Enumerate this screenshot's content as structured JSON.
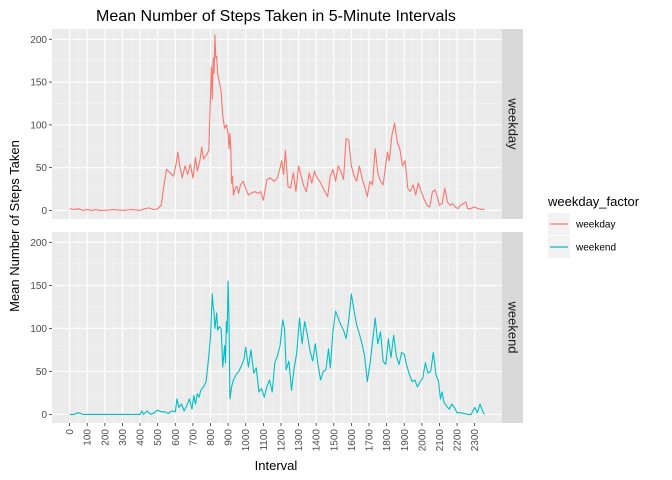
{
  "chart_data": {
    "type": "line",
    "title": "Mean Number of Steps Taken in 5-Minute Intervals",
    "xlabel": "Interval",
    "ylabel": "Mean Number of Steps Taken",
    "xlim": [
      -100,
      2455
    ],
    "ylim": [
      -10,
      212
    ],
    "x_ticks": [
      0,
      100,
      200,
      300,
      400,
      500,
      600,
      700,
      800,
      900,
      1000,
      1100,
      1200,
      1300,
      1400,
      1500,
      1600,
      1700,
      1800,
      1900,
      2000,
      2100,
      2200,
      2300
    ],
    "y_ticks": [
      0,
      50,
      100,
      150,
      200
    ],
    "grid": true,
    "legend": {
      "title": "weekday_factor",
      "position": "right"
    },
    "facets": [
      "weekday",
      "weekend"
    ],
    "series": [
      {
        "name": "weekday",
        "color": "#F8766D",
        "points": [
          [
            0,
            2
          ],
          [
            25,
            1
          ],
          [
            50,
            2
          ],
          [
            75,
            0
          ],
          [
            100,
            1
          ],
          [
            125,
            0
          ],
          [
            150,
            1
          ],
          [
            175,
            0
          ],
          [
            200,
            0
          ],
          [
            250,
            1
          ],
          [
            300,
            0
          ],
          [
            350,
            1
          ],
          [
            400,
            0
          ],
          [
            430,
            2
          ],
          [
            450,
            3
          ],
          [
            480,
            1
          ],
          [
            500,
            2
          ],
          [
            520,
            6
          ],
          [
            535,
            28
          ],
          [
            550,
            48
          ],
          [
            570,
            44
          ],
          [
            590,
            40
          ],
          [
            605,
            55
          ],
          [
            615,
            68
          ],
          [
            625,
            52
          ],
          [
            640,
            38
          ],
          [
            655,
            52
          ],
          [
            670,
            42
          ],
          [
            685,
            54
          ],
          [
            700,
            38
          ],
          [
            715,
            62
          ],
          [
            725,
            46
          ],
          [
            740,
            58
          ],
          [
            750,
            74
          ],
          [
            760,
            60
          ],
          [
            775,
            64
          ],
          [
            790,
            70
          ],
          [
            805,
            168
          ],
          [
            810,
            130
          ],
          [
            815,
            178
          ],
          [
            820,
            160
          ],
          [
            825,
            205
          ],
          [
            830,
            178
          ],
          [
            835,
            180
          ],
          [
            840,
            160
          ],
          [
            850,
            150
          ],
          [
            860,
            140
          ],
          [
            870,
            110
          ],
          [
            880,
            96
          ],
          [
            890,
            100
          ],
          [
            900,
            90
          ],
          [
            905,
            72
          ],
          [
            910,
            90
          ],
          [
            915,
            72
          ],
          [
            920,
            32
          ],
          [
            925,
            40
          ],
          [
            930,
            18
          ],
          [
            940,
            26
          ],
          [
            950,
            28
          ],
          [
            960,
            20
          ],
          [
            970,
            30
          ],
          [
            985,
            34
          ],
          [
            1000,
            26
          ],
          [
            1015,
            18
          ],
          [
            1030,
            20
          ],
          [
            1050,
            22
          ],
          [
            1070,
            20
          ],
          [
            1085,
            22
          ],
          [
            1100,
            12
          ],
          [
            1120,
            36
          ],
          [
            1140,
            38
          ],
          [
            1160,
            34
          ],
          [
            1180,
            38
          ],
          [
            1195,
            50
          ],
          [
            1205,
            58
          ],
          [
            1215,
            42
          ],
          [
            1225,
            70
          ],
          [
            1240,
            28
          ],
          [
            1255,
            26
          ],
          [
            1270,
            44
          ],
          [
            1285,
            22
          ],
          [
            1300,
            52
          ],
          [
            1315,
            40
          ],
          [
            1330,
            28
          ],
          [
            1345,
            22
          ],
          [
            1360,
            44
          ],
          [
            1375,
            32
          ],
          [
            1390,
            46
          ],
          [
            1405,
            38
          ],
          [
            1420,
            34
          ],
          [
            1435,
            28
          ],
          [
            1450,
            22
          ],
          [
            1465,
            16
          ],
          [
            1480,
            40
          ],
          [
            1495,
            48
          ],
          [
            1510,
            34
          ],
          [
            1525,
            52
          ],
          [
            1540,
            46
          ],
          [
            1555,
            36
          ],
          [
            1570,
            84
          ],
          [
            1585,
            82
          ],
          [
            1600,
            52
          ],
          [
            1615,
            40
          ],
          [
            1630,
            34
          ],
          [
            1645,
            52
          ],
          [
            1660,
            38
          ],
          [
            1675,
            28
          ],
          [
            1690,
            16
          ],
          [
            1705,
            34
          ],
          [
            1720,
            30
          ],
          [
            1735,
            72
          ],
          [
            1750,
            44
          ],
          [
            1765,
            34
          ],
          [
            1780,
            30
          ],
          [
            1795,
            54
          ],
          [
            1805,
            68
          ],
          [
            1815,
            58
          ],
          [
            1830,
            88
          ],
          [
            1845,
            102
          ],
          [
            1860,
            80
          ],
          [
            1875,
            72
          ],
          [
            1890,
            52
          ],
          [
            1905,
            58
          ],
          [
            1920,
            26
          ],
          [
            1935,
            22
          ],
          [
            1950,
            30
          ],
          [
            1965,
            18
          ],
          [
            1980,
            32
          ],
          [
            2000,
            20
          ],
          [
            2015,
            12
          ],
          [
            2030,
            6
          ],
          [
            2045,
            4
          ],
          [
            2060,
            22
          ],
          [
            2075,
            24
          ],
          [
            2090,
            14
          ],
          [
            2100,
            6
          ],
          [
            2115,
            8
          ],
          [
            2130,
            26
          ],
          [
            2145,
            10
          ],
          [
            2160,
            6
          ],
          [
            2175,
            8
          ],
          [
            2190,
            4
          ],
          [
            2205,
            2
          ],
          [
            2220,
            6
          ],
          [
            2235,
            8
          ],
          [
            2250,
            10
          ],
          [
            2260,
            2
          ],
          [
            2275,
            2
          ],
          [
            2300,
            4
          ],
          [
            2320,
            2
          ],
          [
            2345,
            1
          ],
          [
            2355,
            2
          ]
        ]
      },
      {
        "name": "weekend",
        "color": "#00BFC4",
        "points": [
          [
            0,
            0
          ],
          [
            25,
            0
          ],
          [
            50,
            2
          ],
          [
            75,
            0
          ],
          [
            100,
            0
          ],
          [
            125,
            0
          ],
          [
            150,
            0
          ],
          [
            175,
            0
          ],
          [
            200,
            0
          ],
          [
            250,
            0
          ],
          [
            300,
            0
          ],
          [
            350,
            0
          ],
          [
            400,
            0
          ],
          [
            410,
            4
          ],
          [
            420,
            0
          ],
          [
            440,
            4
          ],
          [
            460,
            0
          ],
          [
            480,
            2
          ],
          [
            500,
            5
          ],
          [
            520,
            3
          ],
          [
            540,
            3
          ],
          [
            560,
            1
          ],
          [
            580,
            4
          ],
          [
            600,
            3
          ],
          [
            610,
            18
          ],
          [
            620,
            8
          ],
          [
            635,
            12
          ],
          [
            650,
            4
          ],
          [
            665,
            10
          ],
          [
            680,
            18
          ],
          [
            695,
            6
          ],
          [
            705,
            22
          ],
          [
            715,
            12
          ],
          [
            725,
            24
          ],
          [
            735,
            20
          ],
          [
            745,
            28
          ],
          [
            760,
            32
          ],
          [
            775,
            38
          ],
          [
            790,
            68
          ],
          [
            800,
            90
          ],
          [
            810,
            140
          ],
          [
            815,
            125
          ],
          [
            820,
            120
          ],
          [
            825,
            100
          ],
          [
            835,
            118
          ],
          [
            840,
            98
          ],
          [
            850,
            102
          ],
          [
            860,
            100
          ],
          [
            870,
            55
          ],
          [
            880,
            80
          ],
          [
            885,
            60
          ],
          [
            890,
            108
          ],
          [
            895,
            95
          ],
          [
            900,
            155
          ],
          [
            905,
            110
          ],
          [
            910,
            18
          ],
          [
            920,
            32
          ],
          [
            930,
            40
          ],
          [
            945,
            46
          ],
          [
            960,
            50
          ],
          [
            975,
            56
          ],
          [
            990,
            64
          ],
          [
            1000,
            78
          ],
          [
            1015,
            55
          ],
          [
            1030,
            75
          ],
          [
            1045,
            48
          ],
          [
            1060,
            54
          ],
          [
            1075,
            26
          ],
          [
            1090,
            30
          ],
          [
            1105,
            20
          ],
          [
            1120,
            32
          ],
          [
            1135,
            40
          ],
          [
            1150,
            26
          ],
          [
            1165,
            60
          ],
          [
            1180,
            68
          ],
          [
            1195,
            80
          ],
          [
            1210,
            110
          ],
          [
            1220,
            100
          ],
          [
            1230,
            52
          ],
          [
            1245,
            62
          ],
          [
            1260,
            28
          ],
          [
            1275,
            54
          ],
          [
            1290,
            72
          ],
          [
            1305,
            112
          ],
          [
            1320,
            82
          ],
          [
            1335,
            108
          ],
          [
            1350,
            92
          ],
          [
            1365,
            74
          ],
          [
            1380,
            62
          ],
          [
            1395,
            82
          ],
          [
            1410,
            58
          ],
          [
            1425,
            40
          ],
          [
            1440,
            50
          ],
          [
            1455,
            52
          ],
          [
            1470,
            76
          ],
          [
            1480,
            54
          ],
          [
            1495,
            96
          ],
          [
            1510,
            120
          ],
          [
            1525,
            112
          ],
          [
            1540,
            104
          ],
          [
            1555,
            98
          ],
          [
            1570,
            88
          ],
          [
            1585,
            110
          ],
          [
            1600,
            140
          ],
          [
            1615,
            120
          ],
          [
            1630,
            104
          ],
          [
            1645,
            94
          ],
          [
            1660,
            82
          ],
          [
            1675,
            68
          ],
          [
            1690,
            38
          ],
          [
            1705,
            58
          ],
          [
            1720,
            84
          ],
          [
            1735,
            112
          ],
          [
            1750,
            82
          ],
          [
            1765,
            96
          ],
          [
            1780,
            62
          ],
          [
            1795,
            58
          ],
          [
            1810,
            88
          ],
          [
            1825,
            66
          ],
          [
            1840,
            92
          ],
          [
            1855,
            68
          ],
          [
            1870,
            58
          ],
          [
            1885,
            72
          ],
          [
            1900,
            70
          ],
          [
            1915,
            56
          ],
          [
            1930,
            46
          ],
          [
            1945,
            38
          ],
          [
            1960,
            40
          ],
          [
            1975,
            32
          ],
          [
            1990,
            38
          ],
          [
            2005,
            42
          ],
          [
            2020,
            60
          ],
          [
            2035,
            48
          ],
          [
            2050,
            50
          ],
          [
            2065,
            72
          ],
          [
            2080,
            46
          ],
          [
            2095,
            38
          ],
          [
            2105,
            18
          ],
          [
            2115,
            26
          ],
          [
            2125,
            14
          ],
          [
            2140,
            10
          ],
          [
            2155,
            6
          ],
          [
            2170,
            12
          ],
          [
            2185,
            8
          ],
          [
            2200,
            2
          ],
          [
            2220,
            2
          ],
          [
            2240,
            1
          ],
          [
            2260,
            0
          ],
          [
            2280,
            0
          ],
          [
            2300,
            8
          ],
          [
            2315,
            2
          ],
          [
            2330,
            12
          ],
          [
            2345,
            4
          ],
          [
            2355,
            0
          ]
        ]
      }
    ]
  }
}
